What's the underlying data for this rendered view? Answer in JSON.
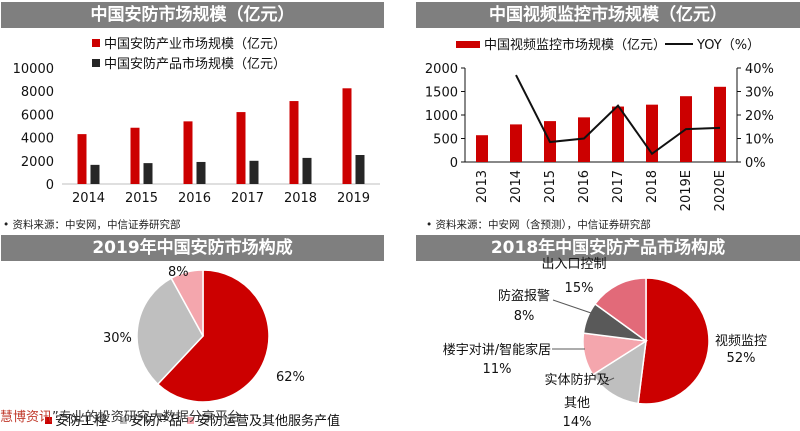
{
  "panels": [
    {
      "title": "中国安防市场规模（亿元）"
    },
    {
      "title": "中国视频监控市场规模（亿元）"
    },
    {
      "title": "2019年中国安防市场构成"
    },
    {
      "title": "2018年中国安防产品市场构成"
    }
  ],
  "sources": {
    "left": "• 资料来源：中安网，中信证券研究部",
    "right": "• 资料来源：中安网（含预测），中信证券研究部"
  },
  "watermark": {
    "brand": "慧博资讯",
    "text": "”专业的投资研究大数据分享平台"
  },
  "colors": {
    "red": "#cc0000",
    "dark": "#262626",
    "gray_light": "#bfbfbf",
    "gray_mid": "#a6a6a6",
    "pink": "#f4a6ad",
    "rose": "#e26a79",
    "dark_gray": "#595959",
    "header_bg": "#7f7f7f"
  },
  "chart_data": [
    {
      "type": "bar",
      "categories": [
        "2014",
        "2015",
        "2016",
        "2017",
        "2018",
        "2019"
      ],
      "series": [
        {
          "name": "中国安防产业市场规模（亿元）",
          "values": [
            4300,
            4850,
            5400,
            6200,
            7150,
            8250
          ]
        },
        {
          "name": "中国安防产品市场规模（亿元）",
          "values": [
            1650,
            1800,
            1900,
            2000,
            2250,
            2500
          ]
        }
      ],
      "yticks": [
        "0",
        "2000",
        "4000",
        "6000",
        "8000",
        "10000"
      ],
      "ylim": [
        0,
        10000
      ],
      "legend": "top-left"
    },
    {
      "type": "bar",
      "categories": [
        "2013",
        "2014",
        "2015",
        "2016",
        "2017",
        "2018",
        "2019E",
        "2020E"
      ],
      "series": [
        {
          "name": "中国视频监控市场规模（亿元）",
          "values": [
            570,
            800,
            870,
            950,
            1180,
            1220,
            1400,
            1600
          ]
        },
        {
          "name": "YOY（%）",
          "values": [
            null,
            37,
            8.5,
            10,
            24,
            3.5,
            14,
            14.5
          ]
        }
      ],
      "yticks": [
        "0",
        "500",
        "1000",
        "1500",
        "2000"
      ],
      "ylim": [
        0,
        2000
      ],
      "y2ticks": [
        "0%",
        "10%",
        "20%",
        "30%",
        "40%"
      ],
      "y2lim": [
        0,
        40
      ],
      "legend": "top"
    },
    {
      "type": "pie",
      "labels": [
        "安防工程",
        "安防产品",
        "安防运营及其他服务产值"
      ],
      "values": [
        62,
        30,
        8
      ],
      "value_labels": [
        "62%",
        "30%",
        "8%"
      ],
      "legend": "bottom"
    },
    {
      "type": "pie",
      "labels": [
        "视频监控",
        "实体防护及其他",
        "楼宇对讲/智能家居",
        "防盗报警",
        "出入口控制"
      ],
      "values": [
        52,
        14,
        11,
        8,
        15
      ],
      "value_labels": [
        "52%",
        "14%",
        "11%",
        "8%",
        "15%"
      ],
      "label_lines": [
        [
          "视频监控",
          "52%"
        ],
        [
          "实体防护及",
          "其他",
          "14%"
        ],
        [
          "楼宇对讲/智能家居",
          "11%"
        ],
        [
          "防盗报警",
          "8%"
        ],
        [
          "出入口控制",
          "15%"
        ]
      ]
    }
  ]
}
